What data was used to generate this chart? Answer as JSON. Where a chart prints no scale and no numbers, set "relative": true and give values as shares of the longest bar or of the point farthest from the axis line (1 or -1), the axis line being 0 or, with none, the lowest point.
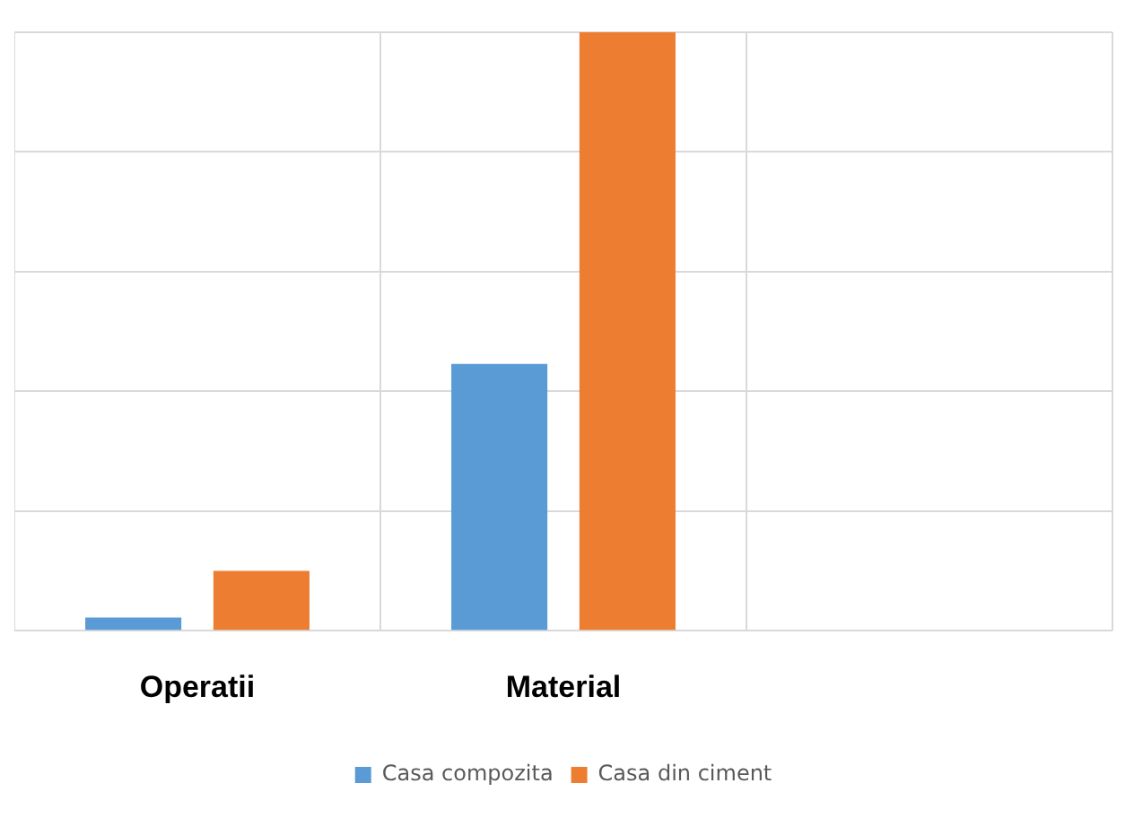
{
  "chart_data": {
    "type": "bar",
    "relative": true,
    "categories": [
      "Operatii",
      "Material",
      null
    ],
    "series": [
      {
        "name": "Casa compozita",
        "color": "#5b9bd5",
        "values": [
          0.022,
          0.446,
          null
        ]
      },
      {
        "name": "Casa din ciment",
        "color": "#ed7d31",
        "values": [
          0.1,
          1,
          null
        ]
      }
    ],
    "grid": true,
    "legend": "bottom"
  }
}
